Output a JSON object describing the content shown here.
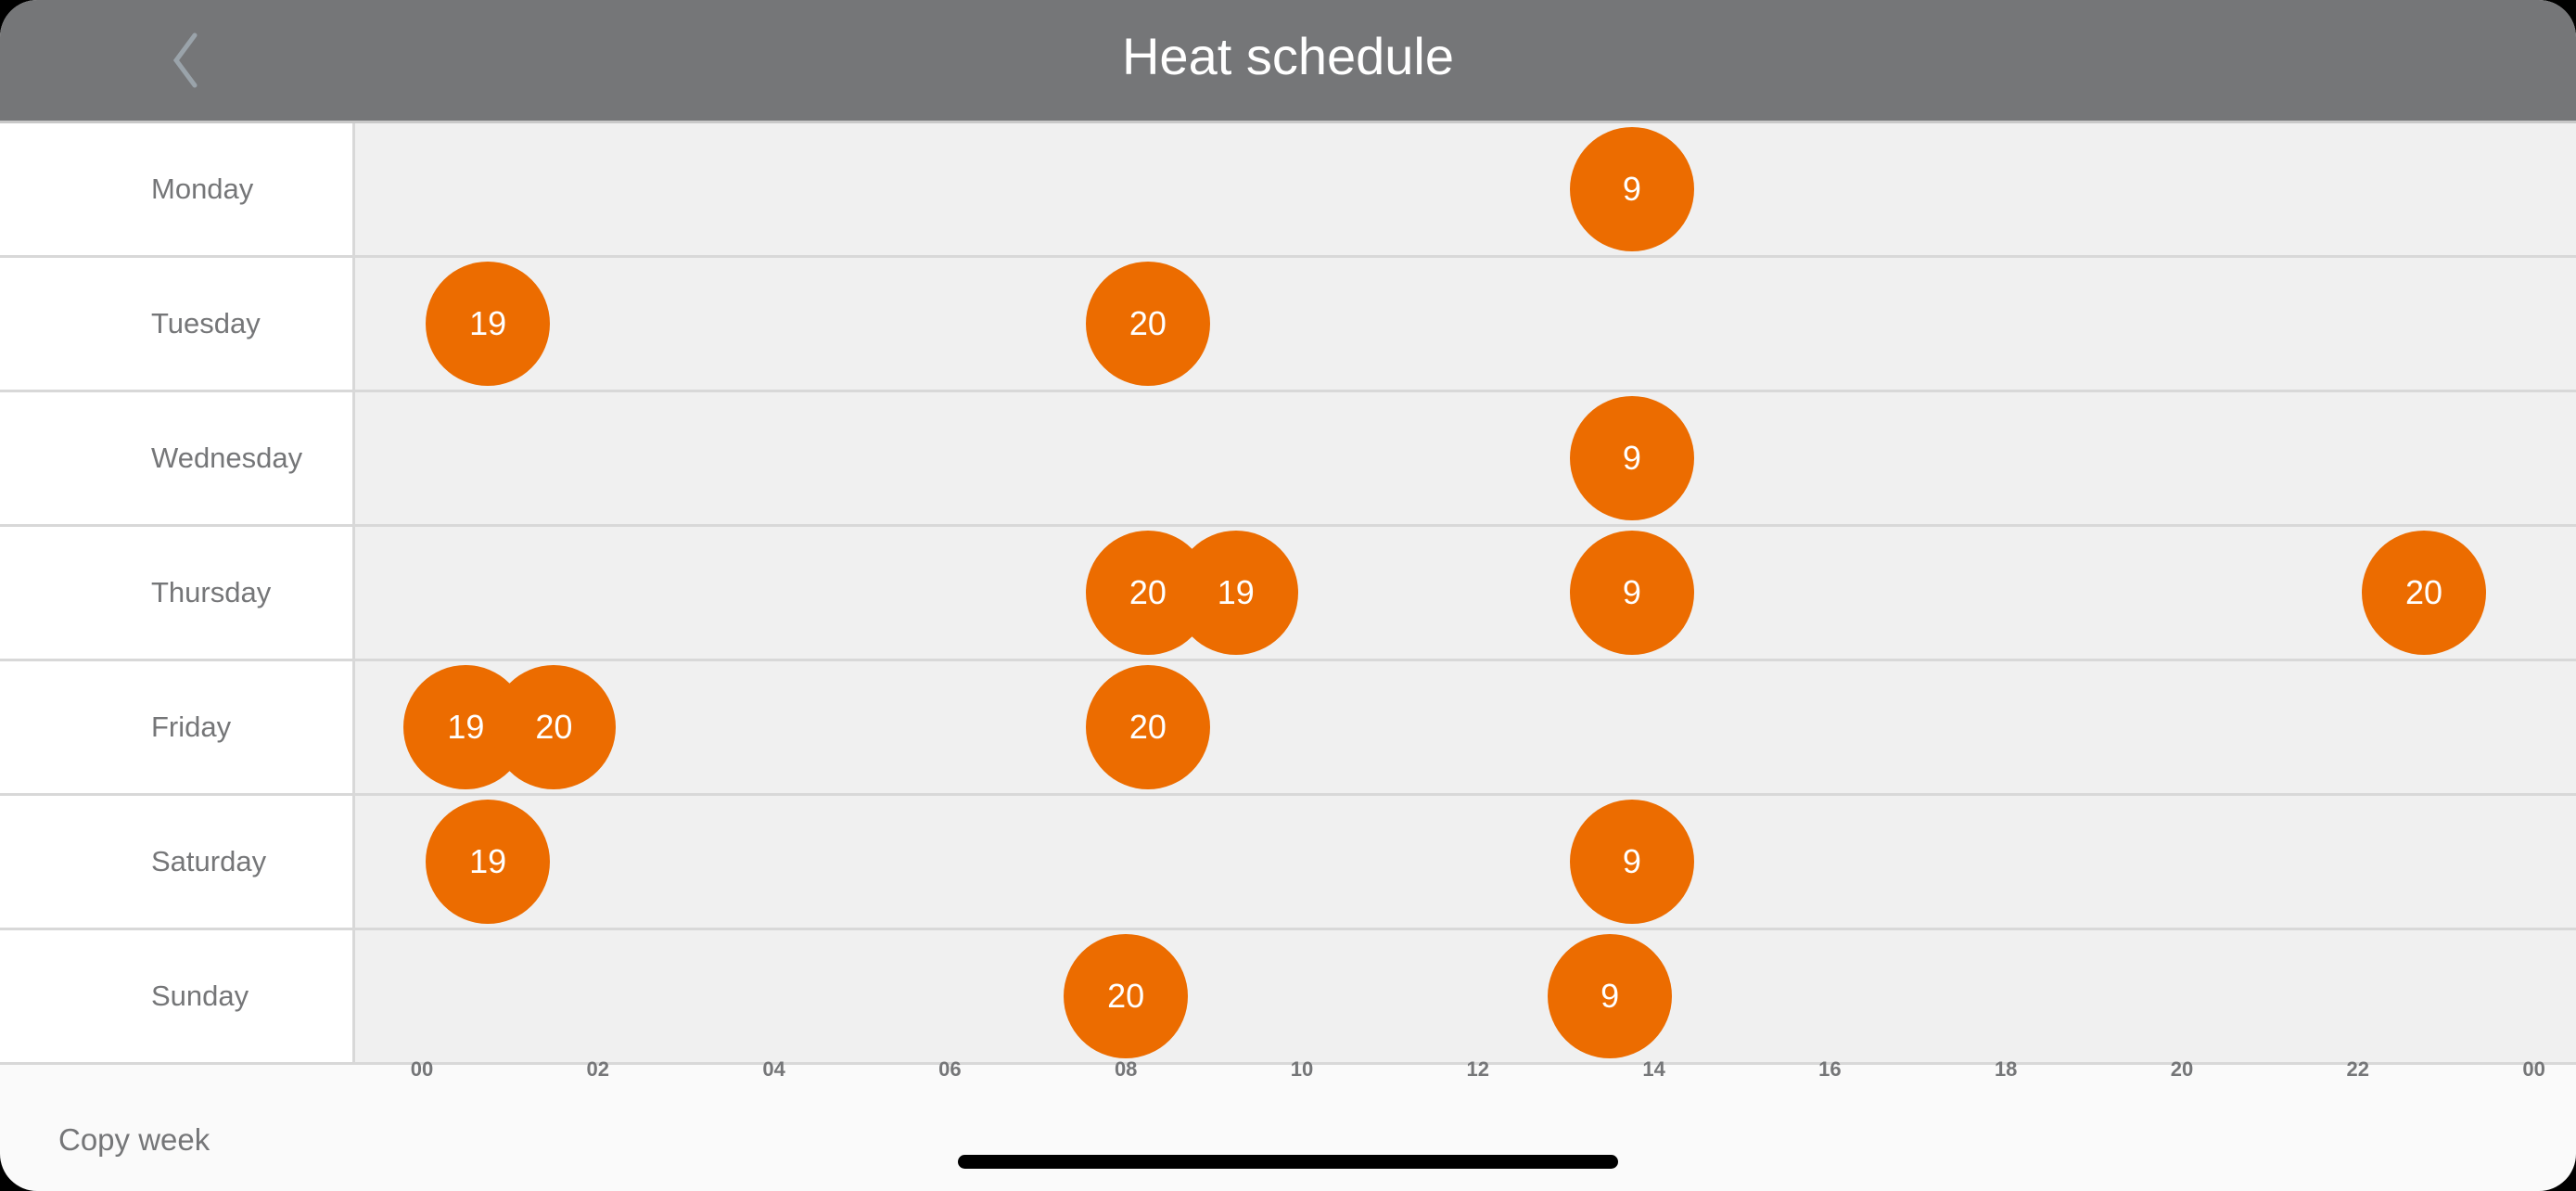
{
  "header": {
    "title": "Heat schedule",
    "back_icon": "chevron-left-icon"
  },
  "colors": {
    "header": "#757678",
    "setpoint": "#EC6C00",
    "track": "#f0f0f0"
  },
  "days": [
    {
      "label": "Monday",
      "points": [
        {
          "time": "13:45",
          "temp": "9"
        }
      ]
    },
    {
      "label": "Tuesday",
      "points": [
        {
          "time": "00:45",
          "temp": "19"
        },
        {
          "time": "08:15",
          "temp": "20"
        }
      ]
    },
    {
      "label": "Wednesday",
      "points": [
        {
          "time": "13:45",
          "temp": "9"
        }
      ]
    },
    {
      "label": "Thursday",
      "points": [
        {
          "time": "08:15",
          "temp": "20"
        },
        {
          "time": "09:15",
          "temp": "19"
        },
        {
          "time": "13:45",
          "temp": "9"
        },
        {
          "time": "22:45",
          "temp": "20"
        }
      ]
    },
    {
      "label": "Friday",
      "points": [
        {
          "time": "00:30",
          "temp": "19"
        },
        {
          "time": "01:30",
          "temp": "20"
        },
        {
          "time": "08:15",
          "temp": "20"
        }
      ]
    },
    {
      "label": "Saturday",
      "points": [
        {
          "time": "00:45",
          "temp": "19"
        },
        {
          "time": "13:45",
          "temp": "9"
        }
      ]
    },
    {
      "label": "Sunday",
      "points": [
        {
          "time": "08:00",
          "temp": "20"
        },
        {
          "time": "13:30",
          "temp": "9"
        }
      ]
    }
  ],
  "axis_ticks": [
    "00",
    "02",
    "04",
    "06",
    "08",
    "10",
    "12",
    "14",
    "16",
    "18",
    "20",
    "22",
    "00"
  ],
  "footer": {
    "copy_week": "Copy week"
  }
}
